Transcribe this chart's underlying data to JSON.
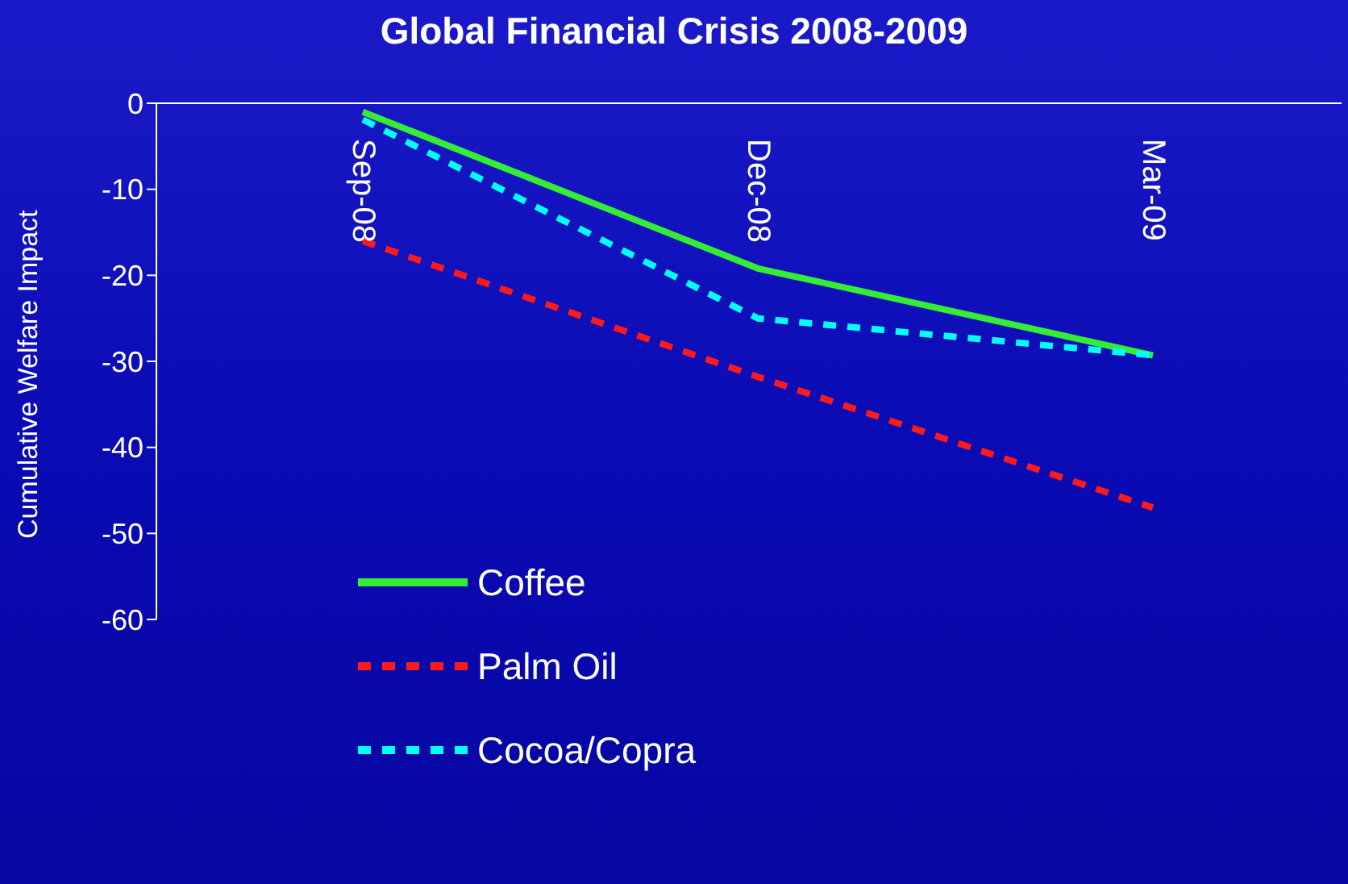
{
  "chart_data": {
    "type": "line",
    "title": "Global Financial Crisis 2008-2009",
    "ylabel": "Cumulative Welfare Impact",
    "categories": [
      "Sep-08",
      "Dec-08",
      "Mar-09"
    ],
    "series": [
      {
        "name": "Coffee",
        "color": "#33ee33",
        "line_style": "solid",
        "values": [
          -1,
          -19.2,
          -29.3
        ]
      },
      {
        "name": "Palm Oil",
        "color": "#ff1a1a",
        "line_style": "dashed",
        "values": [
          -16,
          -31.8,
          -47
        ]
      },
      {
        "name": "Cocoa/Copra",
        "color": "#00ffff",
        "line_style": "dashed",
        "values": [
          -1.9,
          -25,
          -29.3
        ]
      }
    ],
    "ylim": [
      -60,
      0
    ],
    "yticks": [
      0,
      -10,
      -20,
      -30,
      -40,
      -50,
      -60
    ],
    "grid": false,
    "legend": "bottom left",
    "marker": "none"
  }
}
